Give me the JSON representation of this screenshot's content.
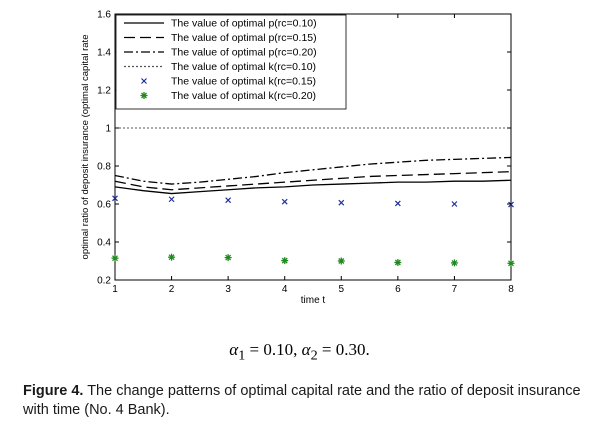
{
  "chart_data": {
    "type": "line",
    "xlabel": "time t",
    "ylabel": "optimal ratio of deposit insurance (optimal capital rate",
    "xlim": [
      1,
      8
    ],
    "ylim": [
      0.2,
      1.6
    ],
    "xticks": [
      "1",
      "2",
      "3",
      "4",
      "5",
      "6",
      "7",
      "8"
    ],
    "yticks": [
      "0.2",
      "0.4",
      "0.6",
      "0.8",
      "1",
      "1.2",
      "1.4",
      "1.6"
    ],
    "reference_line": {
      "y": 1.0,
      "style": "dotted"
    },
    "legend_position": "top-center",
    "series": [
      {
        "name": "The value of optimal p(rc=0.10)",
        "style": "solid",
        "color": "#000000",
        "x": [
          1,
          1.5,
          2,
          2.5,
          3,
          3.5,
          4,
          4.5,
          5,
          5.5,
          6,
          6.5,
          7,
          7.5,
          8
        ],
        "values": [
          0.69,
          0.67,
          0.655,
          0.665,
          0.675,
          0.685,
          0.69,
          0.7,
          0.705,
          0.71,
          0.715,
          0.715,
          0.72,
          0.72,
          0.725
        ]
      },
      {
        "name": "The value of optimal p(rc=0.15)",
        "style": "dashed",
        "color": "#000000",
        "x": [
          1,
          1.5,
          2,
          2.5,
          3,
          3.5,
          4,
          4.5,
          5,
          5.5,
          6,
          6.5,
          7,
          7.5,
          8
        ],
        "values": [
          0.72,
          0.69,
          0.675,
          0.685,
          0.695,
          0.705,
          0.715,
          0.725,
          0.735,
          0.745,
          0.75,
          0.755,
          0.76,
          0.765,
          0.77
        ]
      },
      {
        "name": "The value of optimal p(rc=0.20)",
        "style": "dashdot",
        "color": "#000000",
        "x": [
          1,
          1.5,
          2,
          2.5,
          3,
          3.5,
          4,
          4.5,
          5,
          5.5,
          6,
          6.5,
          7,
          7.5,
          8
        ],
        "values": [
          0.75,
          0.72,
          0.705,
          0.715,
          0.73,
          0.745,
          0.765,
          0.78,
          0.795,
          0.81,
          0.82,
          0.83,
          0.835,
          0.84,
          0.845
        ]
      },
      {
        "name": "The value of optimal k(rc=0.10)",
        "style": "dotted",
        "color": "#000000",
        "x": [
          1,
          8
        ],
        "values": [
          1.0,
          1.0
        ]
      },
      {
        "name": "The value of optimal k(rc=0.15)",
        "style": "marker-x",
        "color": "#1f2f9f",
        "x": [
          1,
          2,
          3,
          4,
          5,
          6,
          7,
          8
        ],
        "values": [
          0.63,
          0.625,
          0.62,
          0.612,
          0.607,
          0.603,
          0.6,
          0.597
        ]
      },
      {
        "name": "The value of optimal k(rc=0.20)",
        "style": "marker-star",
        "color": "#1f8a1f",
        "x": [
          1,
          2,
          3,
          4,
          5,
          6,
          7,
          8
        ],
        "values": [
          0.315,
          0.32,
          0.318,
          0.302,
          0.3,
          0.292,
          0.29,
          0.288
        ]
      }
    ]
  },
  "formula": {
    "a1": "α",
    "sub1": "1",
    "mid": " = 0.10, ",
    "a2": "α",
    "sub2": "2",
    "end": " = 0.30."
  },
  "caption": {
    "label": "Figure 4.",
    "text": " The change patterns of optimal capital rate and the ratio of deposit insurance with time (No. 4 Bank)."
  }
}
